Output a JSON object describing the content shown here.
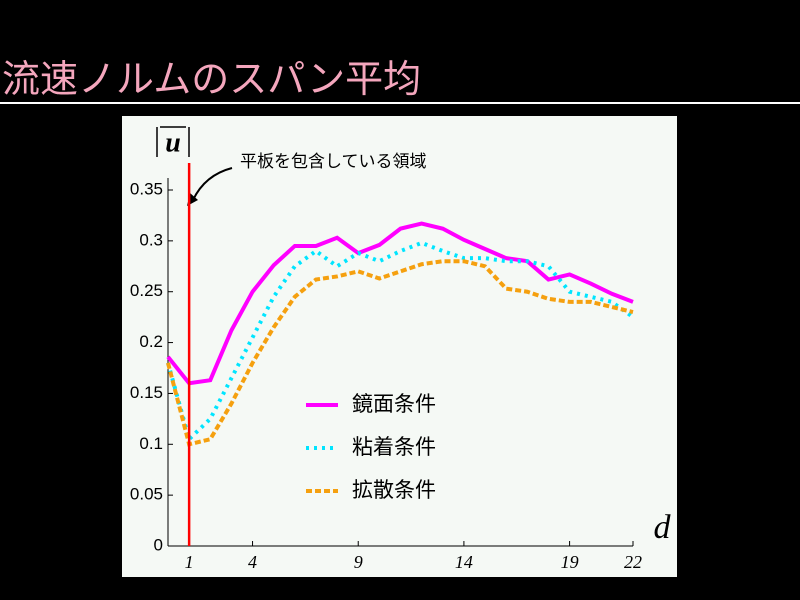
{
  "title": "流速ノルムのスパン平均",
  "chart_data": {
    "type": "line",
    "ylabel": "u",
    "xlabel": "d",
    "annotation": "平板を包含している領域",
    "x": [
      0,
      1,
      2,
      3,
      4,
      5,
      6,
      7,
      8,
      9,
      10,
      11,
      12,
      13,
      14,
      15,
      16,
      17,
      18,
      19,
      20,
      21,
      22
    ],
    "series": [
      {
        "name": "鏡面条件",
        "color": "#ff00ff",
        "dash": "solid",
        "values": [
          0.186,
          0.16,
          0.163,
          0.212,
          0.25,
          0.276,
          0.295,
          0.295,
          0.303,
          0.288,
          0.296,
          0.312,
          0.317,
          0.312,
          0.301,
          0.292,
          0.283,
          0.28,
          0.262,
          0.267,
          0.258,
          0.248,
          0.24
        ]
      },
      {
        "name": "粘着条件",
        "color": "#00e5ff",
        "dash": "dotted",
        "values": [
          0.18,
          0.105,
          0.125,
          0.165,
          0.205,
          0.245,
          0.275,
          0.29,
          0.275,
          0.288,
          0.28,
          0.29,
          0.298,
          0.29,
          0.283,
          0.283,
          0.28,
          0.28,
          0.275,
          0.25,
          0.245,
          0.24,
          0.225
        ]
      },
      {
        "name": "拡散条件",
        "color": "#f5a00f",
        "dash": "dashed",
        "values": [
          0.18,
          0.1,
          0.105,
          0.14,
          0.18,
          0.215,
          0.245,
          0.262,
          0.265,
          0.27,
          0.263,
          0.27,
          0.277,
          0.28,
          0.28,
          0.275,
          0.253,
          0.25,
          0.243,
          0.24,
          0.24,
          0.235,
          0.23
        ]
      }
    ],
    "vline": 1,
    "vline_color": "#ff0000",
    "xlim": [
      0,
      22
    ],
    "xticks": [
      1,
      4,
      9,
      14,
      19,
      22
    ],
    "ylim": [
      0,
      0.35
    ],
    "yticks": [
      0,
      0.05,
      0.1,
      0.15,
      0.2,
      0.25,
      0.3,
      0.35
    ],
    "grid": false
  }
}
